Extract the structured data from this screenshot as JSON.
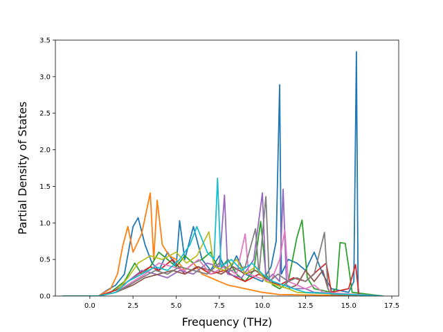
{
  "chart_data": {
    "type": "line",
    "title": "",
    "xlabel": "Frequency (THz)",
    "ylabel": "Partial Density of States",
    "xlim": [
      -2.0,
      17.9
    ],
    "ylim": [
      0,
      3.5
    ],
    "x_ticks": [
      0.0,
      2.5,
      5.0,
      7.5,
      10.0,
      12.5,
      15.0,
      17.5
    ],
    "x_tick_labels": [
      "0.0",
      "2.5",
      "5.0",
      "7.5",
      "10.0",
      "12.5",
      "15.0",
      "17.5"
    ],
    "y_ticks": [
      0.0,
      0.5,
      1.0,
      1.5,
      2.0,
      2.5,
      3.0,
      3.5
    ],
    "y_tick_labels": [
      "0.0",
      "0.5",
      "1.0",
      "1.5",
      "2.0",
      "2.5",
      "3.0",
      "3.5"
    ],
    "grid": false,
    "legend": "none",
    "series": [
      {
        "color": "#1f77b4",
        "points": [
          [
            -1.6,
            0
          ],
          [
            0.5,
            0
          ],
          [
            1.0,
            0.08
          ],
          [
            1.5,
            0.15
          ],
          [
            2.0,
            0.3
          ],
          [
            2.5,
            0.95
          ],
          [
            2.8,
            1.07
          ],
          [
            3.2,
            0.7
          ],
          [
            3.6,
            0.45
          ],
          [
            4.0,
            0.35
          ],
          [
            4.5,
            0.6
          ],
          [
            5.0,
            0.4
          ],
          [
            5.2,
            1.03
          ],
          [
            5.5,
            0.5
          ],
          [
            6.0,
            0.95
          ],
          [
            6.5,
            0.5
          ],
          [
            7.0,
            0.35
          ],
          [
            7.5,
            0.55
          ],
          [
            8.0,
            0.3
          ],
          [
            8.5,
            0.55
          ],
          [
            9.0,
            0.3
          ],
          [
            9.5,
            0.25
          ],
          [
            10.0,
            0.2
          ],
          [
            10.5,
            0.4
          ],
          [
            10.8,
            0.75
          ],
          [
            11.0,
            2.89
          ],
          [
            11.1,
            0.3
          ],
          [
            11.5,
            0.5
          ],
          [
            12.0,
            0.45
          ],
          [
            12.5,
            0.35
          ],
          [
            13.0,
            0.6
          ],
          [
            13.5,
            0.3
          ],
          [
            14.0,
            0.1
          ],
          [
            15.0,
            0.05
          ],
          [
            15.3,
            0.2
          ],
          [
            15.45,
            3.34
          ],
          [
            15.55,
            0.0
          ],
          [
            17.0,
            0
          ]
        ]
      },
      {
        "color": "#ff7f0e",
        "points": [
          [
            -1.6,
            0
          ],
          [
            0.5,
            0
          ],
          [
            1.2,
            0.1
          ],
          [
            1.6,
            0.3
          ],
          [
            1.9,
            0.68
          ],
          [
            2.2,
            0.95
          ],
          [
            2.5,
            0.6
          ],
          [
            3.0,
            0.85
          ],
          [
            3.5,
            1.41
          ],
          [
            3.7,
            0.5
          ],
          [
            3.9,
            1.31
          ],
          [
            4.2,
            0.7
          ],
          [
            4.6,
            0.55
          ],
          [
            5.0,
            0.5
          ],
          [
            5.5,
            0.35
          ],
          [
            6.0,
            0.45
          ],
          [
            6.5,
            0.3
          ],
          [
            7.0,
            0.25
          ],
          [
            7.5,
            0.2
          ],
          [
            8.0,
            0.15
          ],
          [
            9.0,
            0.1
          ],
          [
            10.0,
            0.05
          ],
          [
            11.0,
            0.02
          ],
          [
            17.0,
            0
          ]
        ]
      },
      {
        "color": "#2ca02c",
        "points": [
          [
            -1.6,
            0
          ],
          [
            0.5,
            0
          ],
          [
            1.2,
            0.05
          ],
          [
            2.0,
            0.2
          ],
          [
            2.6,
            0.45
          ],
          [
            3.0,
            0.3
          ],
          [
            3.5,
            0.4
          ],
          [
            4.0,
            0.6
          ],
          [
            4.5,
            0.5
          ],
          [
            5.0,
            0.4
          ],
          [
            5.5,
            0.55
          ],
          [
            6.0,
            0.45
          ],
          [
            6.5,
            0.5
          ],
          [
            7.0,
            0.6
          ],
          [
            7.5,
            0.35
          ],
          [
            8.0,
            0.5
          ],
          [
            8.5,
            0.3
          ],
          [
            9.0,
            0.2
          ],
          [
            9.5,
            0.35
          ],
          [
            9.9,
            1.02
          ],
          [
            10.2,
            0.3
          ],
          [
            10.6,
            0.15
          ],
          [
            11.0,
            0.1
          ],
          [
            11.5,
            0.2
          ],
          [
            12.0,
            0.8
          ],
          [
            12.3,
            1.04
          ],
          [
            12.6,
            0.25
          ],
          [
            13.0,
            0.1
          ],
          [
            14.0,
            0.05
          ],
          [
            14.3,
            0.1
          ],
          [
            14.5,
            0.73
          ],
          [
            14.8,
            0.72
          ],
          [
            15.0,
            0.4
          ],
          [
            15.2,
            0.05
          ],
          [
            17.0,
            0
          ]
        ]
      },
      {
        "color": "#d62728",
        "points": [
          [
            -1.6,
            0
          ],
          [
            0.5,
            0
          ],
          [
            1.5,
            0.08
          ],
          [
            2.2,
            0.2
          ],
          [
            2.8,
            0.3
          ],
          [
            3.5,
            0.4
          ],
          [
            4.0,
            0.35
          ],
          [
            4.8,
            0.5
          ],
          [
            5.5,
            0.3
          ],
          [
            6.3,
            0.4
          ],
          [
            7.0,
            0.3
          ],
          [
            7.8,
            0.35
          ],
          [
            8.5,
            0.25
          ],
          [
            9.0,
            0.2
          ],
          [
            9.8,
            0.3
          ],
          [
            10.5,
            0.2
          ],
          [
            11.0,
            0.15
          ],
          [
            11.8,
            0.25
          ],
          [
            12.5,
            0.2
          ],
          [
            13.2,
            0.35
          ],
          [
            13.7,
            0.45
          ],
          [
            14.0,
            0.05
          ],
          [
            15.0,
            0.1
          ],
          [
            15.4,
            0.43
          ],
          [
            15.6,
            0.0
          ],
          [
            17.0,
            0
          ]
        ]
      },
      {
        "color": "#9467bd",
        "points": [
          [
            -1.6,
            0
          ],
          [
            0.5,
            0
          ],
          [
            1.5,
            0.05
          ],
          [
            2.2,
            0.2
          ],
          [
            3.0,
            0.35
          ],
          [
            3.8,
            0.3
          ],
          [
            4.5,
            0.25
          ],
          [
            5.2,
            0.35
          ],
          [
            6.0,
            0.3
          ],
          [
            6.8,
            0.45
          ],
          [
            7.5,
            0.4
          ],
          [
            7.8,
            1.38
          ],
          [
            8.0,
            0.3
          ],
          [
            8.8,
            0.25
          ],
          [
            9.5,
            0.5
          ],
          [
            10.0,
            1.41
          ],
          [
            10.2,
            0.2
          ],
          [
            10.6,
            0.3
          ],
          [
            11.0,
            0.2
          ],
          [
            11.2,
            1.46
          ],
          [
            11.4,
            0.15
          ],
          [
            11.8,
            0.1
          ],
          [
            12.5,
            0.1
          ],
          [
            13.0,
            0.05
          ],
          [
            17.0,
            0
          ]
        ]
      },
      {
        "color": "#8c564b",
        "points": [
          [
            -1.6,
            0
          ],
          [
            0.5,
            0
          ],
          [
            1.5,
            0.05
          ],
          [
            2.5,
            0.15
          ],
          [
            3.2,
            0.25
          ],
          [
            4.0,
            0.3
          ],
          [
            4.8,
            0.35
          ],
          [
            5.5,
            0.3
          ],
          [
            6.2,
            0.4
          ],
          [
            7.0,
            0.35
          ],
          [
            7.6,
            0.3
          ],
          [
            8.3,
            0.4
          ],
          [
            9.0,
            0.3
          ],
          [
            9.6,
            0.35
          ],
          [
            10.2,
            0.25
          ],
          [
            10.8,
            0.15
          ],
          [
            11.5,
            0.1
          ],
          [
            12.0,
            0.15
          ],
          [
            12.5,
            0.35
          ],
          [
            13.0,
            0.2
          ],
          [
            13.5,
            0.35
          ],
          [
            13.8,
            0.1
          ],
          [
            14.0,
            0.02
          ],
          [
            17.0,
            0
          ]
        ]
      },
      {
        "color": "#e377c2",
        "points": [
          [
            -1.6,
            0
          ],
          [
            0.5,
            0
          ],
          [
            1.5,
            0.05
          ],
          [
            2.5,
            0.2
          ],
          [
            3.2,
            0.3
          ],
          [
            4.0,
            0.45
          ],
          [
            4.8,
            0.4
          ],
          [
            5.5,
            0.35
          ],
          [
            6.3,
            0.5
          ],
          [
            7.0,
            0.3
          ],
          [
            7.8,
            0.4
          ],
          [
            8.5,
            0.3
          ],
          [
            9.0,
            0.85
          ],
          [
            9.2,
            0.3
          ],
          [
            9.8,
            0.25
          ],
          [
            10.5,
            0.2
          ],
          [
            11.0,
            0.5
          ],
          [
            11.3,
            0.9
          ],
          [
            11.5,
            0.2
          ],
          [
            12.0,
            0.15
          ],
          [
            12.5,
            0.1
          ],
          [
            13.0,
            0.15
          ],
          [
            13.5,
            0.05
          ],
          [
            17.0,
            0
          ]
        ]
      },
      {
        "color": "#7f7f7f",
        "points": [
          [
            -1.6,
            0
          ],
          [
            0.5,
            0
          ],
          [
            1.5,
            0.05
          ],
          [
            2.3,
            0.15
          ],
          [
            3.0,
            0.25
          ],
          [
            3.8,
            0.35
          ],
          [
            4.5,
            0.3
          ],
          [
            5.2,
            0.4
          ],
          [
            6.0,
            0.35
          ],
          [
            6.8,
            0.3
          ],
          [
            7.5,
            0.45
          ],
          [
            8.2,
            0.35
          ],
          [
            9.0,
            0.4
          ],
          [
            9.6,
            0.92
          ],
          [
            9.8,
            0.3
          ],
          [
            10.2,
            1.36
          ],
          [
            10.4,
            0.2
          ],
          [
            10.9,
            0.3
          ],
          [
            11.5,
            0.2
          ],
          [
            12.0,
            0.25
          ],
          [
            12.5,
            0.2
          ],
          [
            13.0,
            0.3
          ],
          [
            13.6,
            0.87
          ],
          [
            13.8,
            0.1
          ],
          [
            14.0,
            0.02
          ],
          [
            17.0,
            0
          ]
        ]
      },
      {
        "color": "#bcbd22",
        "points": [
          [
            -1.6,
            0
          ],
          [
            0.5,
            0
          ],
          [
            1.5,
            0.05
          ],
          [
            2.2,
            0.25
          ],
          [
            2.8,
            0.45
          ],
          [
            3.5,
            0.55
          ],
          [
            4.2,
            0.5
          ],
          [
            5.0,
            0.6
          ],
          [
            5.6,
            0.45
          ],
          [
            6.2,
            0.55
          ],
          [
            6.9,
            0.88
          ],
          [
            7.2,
            0.4
          ],
          [
            7.8,
            0.35
          ],
          [
            8.5,
            0.5
          ],
          [
            9.0,
            0.3
          ],
          [
            9.6,
            0.4
          ],
          [
            10.2,
            0.2
          ],
          [
            10.8,
            0.15
          ],
          [
            11.5,
            0.1
          ],
          [
            12.0,
            0.05
          ],
          [
            17.0,
            0
          ]
        ]
      },
      {
        "color": "#17becf",
        "points": [
          [
            -1.6,
            0
          ],
          [
            0.5,
            0
          ],
          [
            1.5,
            0.05
          ],
          [
            2.2,
            0.2
          ],
          [
            3.0,
            0.3
          ],
          [
            3.8,
            0.4
          ],
          [
            4.5,
            0.35
          ],
          [
            5.2,
            0.5
          ],
          [
            5.8,
            0.7
          ],
          [
            6.2,
            0.95
          ],
          [
            6.8,
            0.6
          ],
          [
            7.2,
            0.5
          ],
          [
            7.4,
            1.61
          ],
          [
            7.6,
            0.4
          ],
          [
            8.2,
            0.5
          ],
          [
            8.8,
            0.35
          ],
          [
            9.4,
            0.45
          ],
          [
            10.0,
            0.3
          ],
          [
            10.6,
            0.2
          ],
          [
            11.2,
            0.15
          ],
          [
            11.8,
            0.1
          ],
          [
            12.5,
            0.05
          ],
          [
            17.0,
            0
          ]
        ]
      }
    ]
  }
}
